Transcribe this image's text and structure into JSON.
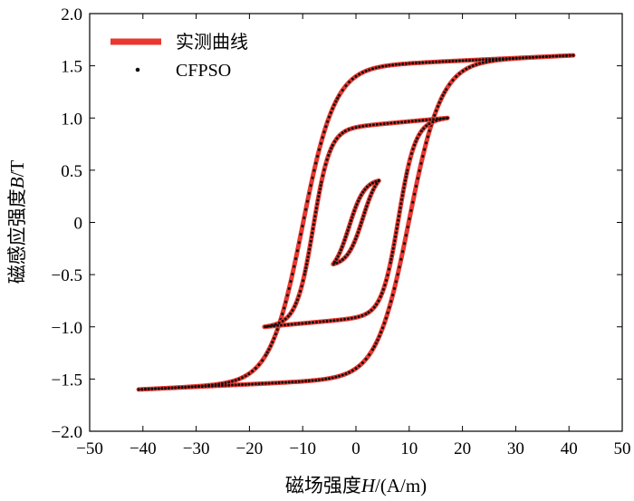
{
  "chart_data": {
    "type": "line",
    "title": "",
    "xlabel_prefix": "磁场强度",
    "xlabel_var": "H",
    "xlabel_unit": "/(A/m)",
    "ylabel_prefix": "磁感应强度",
    "ylabel_var": "B",
    "ylabel_unit": "/T",
    "xlim": [
      -50,
      50
    ],
    "ylim": [
      -2.0,
      2.0
    ],
    "xticks": [
      -50,
      -40,
      -30,
      -20,
      -10,
      0,
      10,
      20,
      30,
      40,
      50
    ],
    "xtick_labels": [
      "−50",
      "−40",
      "−30",
      "−20",
      "−10",
      "0",
      "10",
      "20",
      "30",
      "40",
      "50"
    ],
    "yticks": [
      -2.0,
      -1.5,
      -1.0,
      -0.5,
      0,
      0.5,
      1.0,
      1.5,
      2.0
    ],
    "ytick_labels": [
      "−2.0",
      "−1.5",
      "−1.0",
      "−0.5",
      "0",
      "0.5",
      "1.0",
      "1.5",
      "2.0"
    ],
    "grid": false,
    "legend_position": "top-left",
    "series": [
      {
        "name": "实测曲线",
        "style": "line",
        "color": "#e8382f"
      },
      {
        "name": "CFPSO",
        "style": "dots",
        "color": "#111111"
      }
    ],
    "loops": [
      {
        "Hmax": 40.8,
        "Bmax": 1.6,
        "Hc": 10.0,
        "w": 6.0,
        "slope": 0.0016
      },
      {
        "Hmax": 17.2,
        "Bmax": 1.0,
        "Hc": 8.0,
        "w": 3.1,
        "slope": 0.005
      },
      {
        "Hmax": 4.3,
        "Bmax": 0.4,
        "Hc": 1.3,
        "w": 2.9,
        "slope": 0.0
      }
    ]
  }
}
